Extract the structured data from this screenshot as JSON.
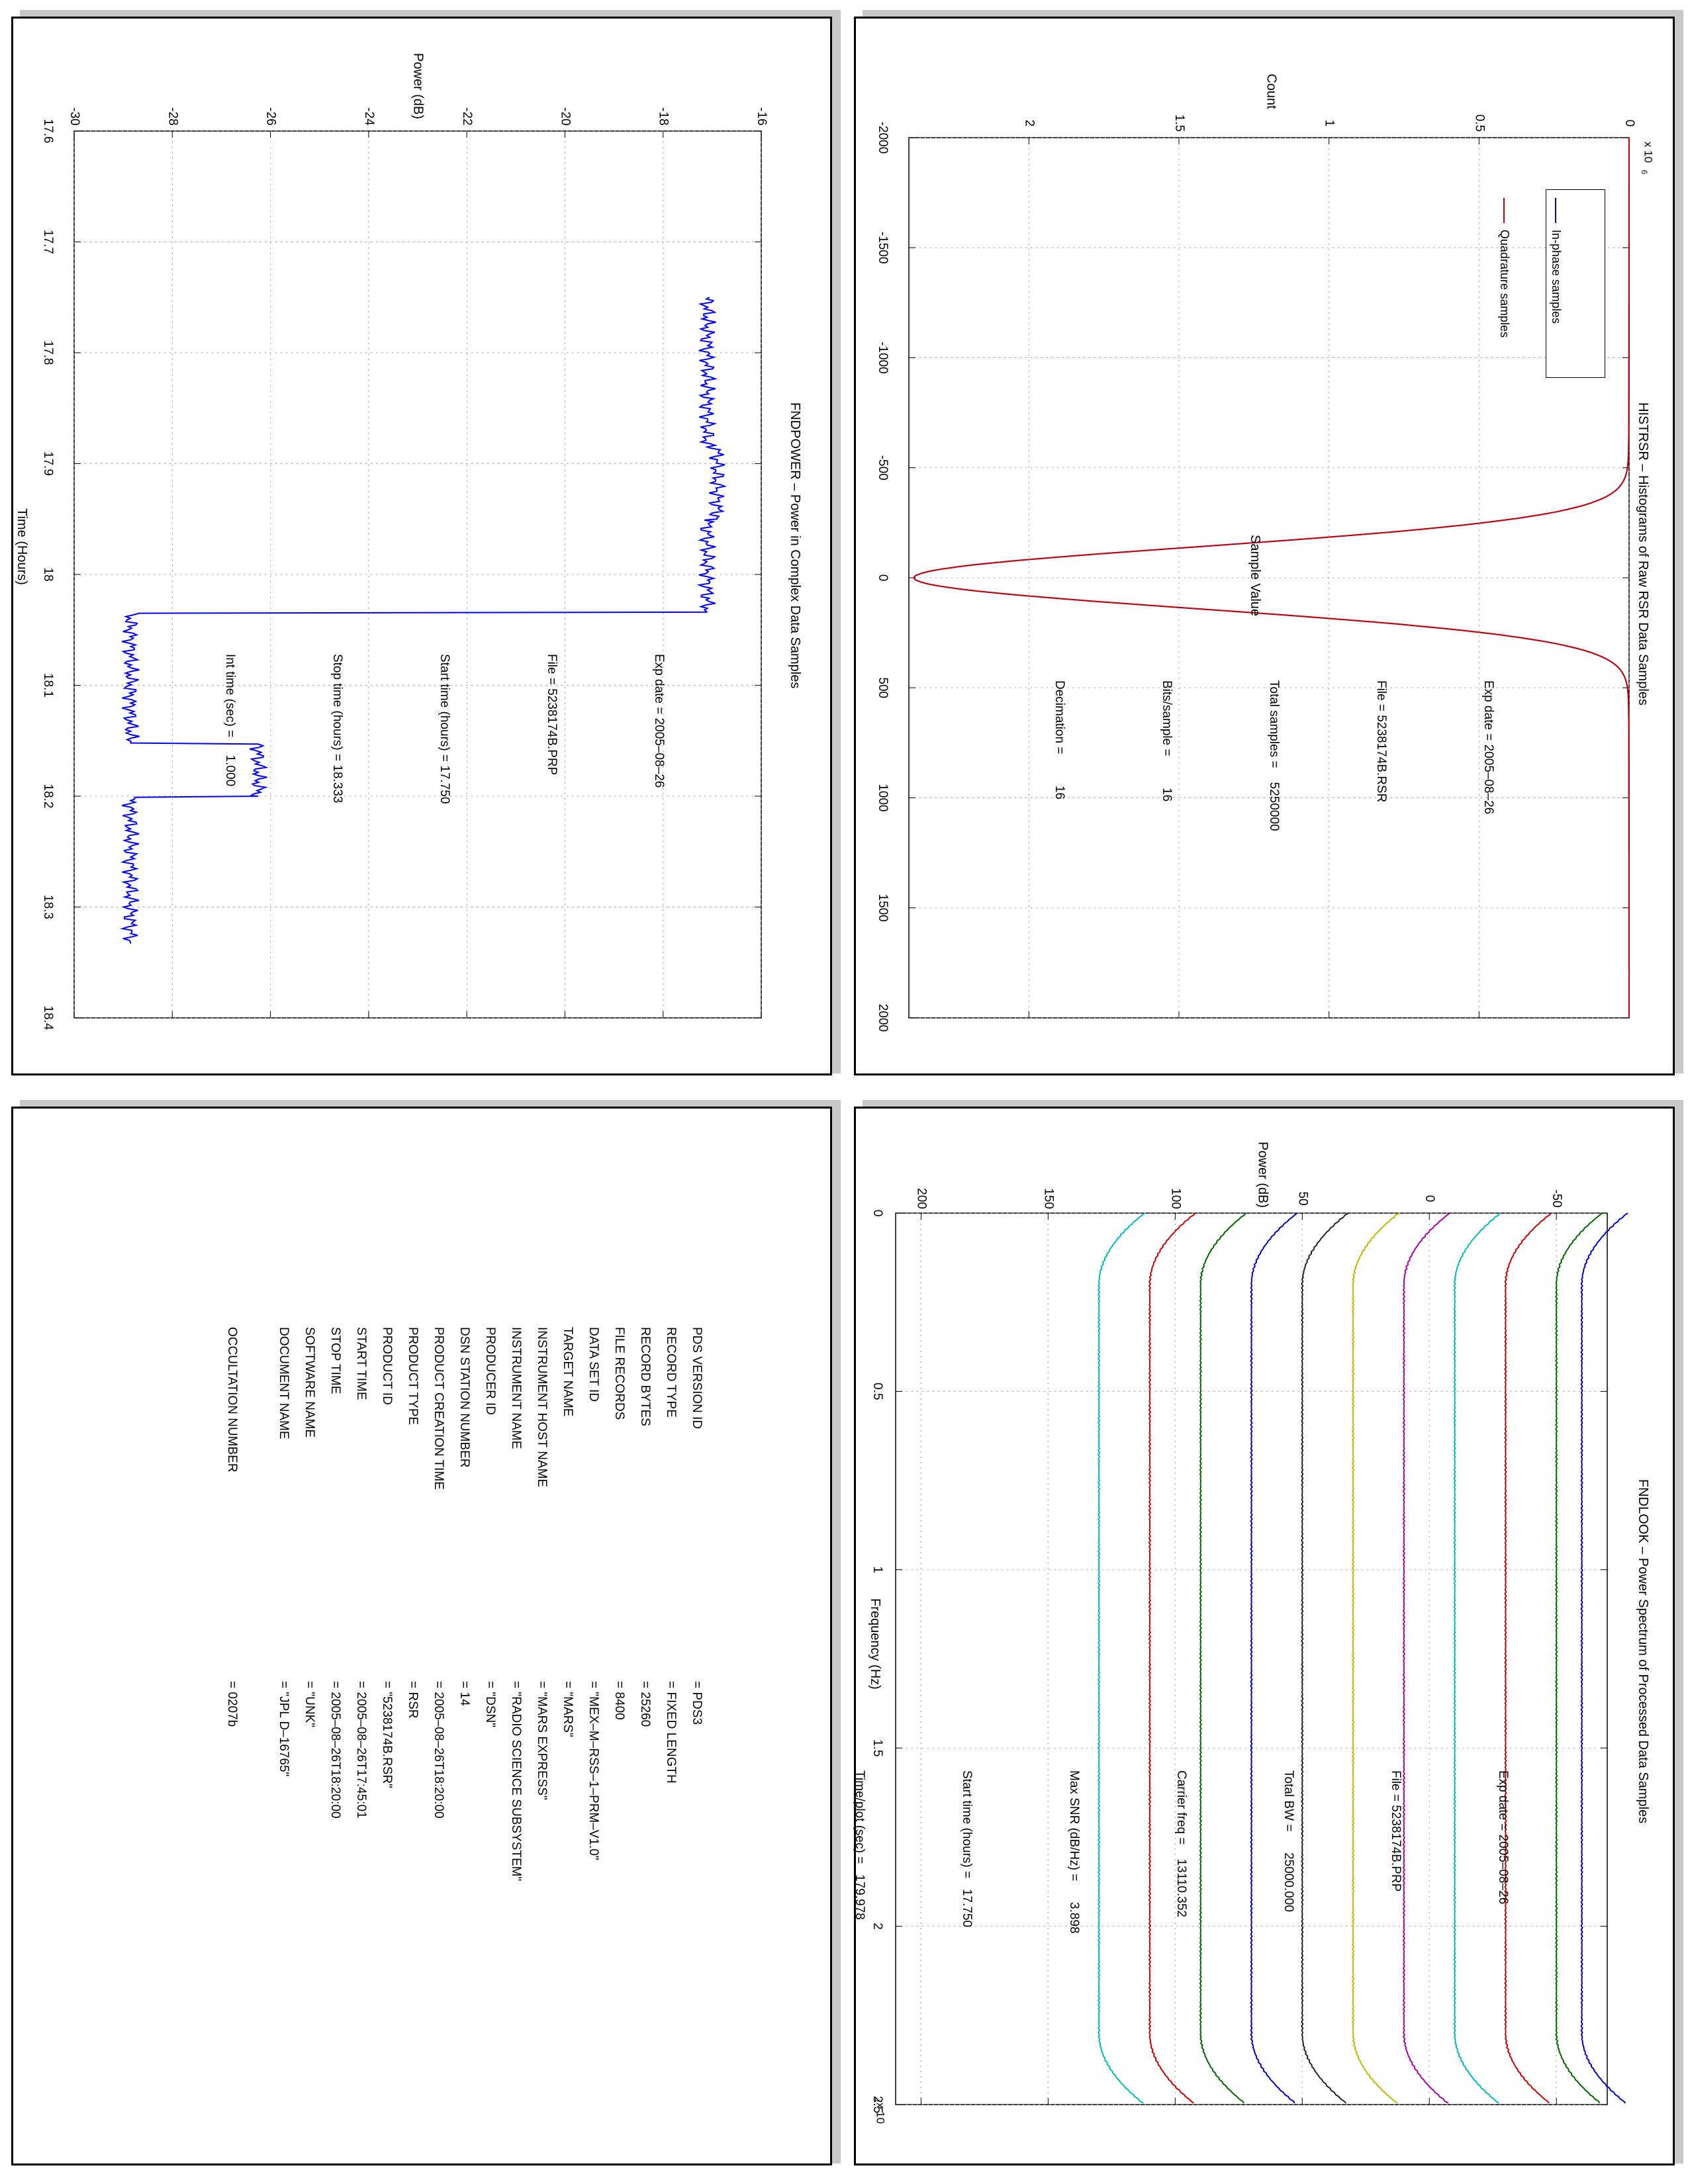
{
  "chart_data": [
    {
      "type": "line",
      "title": "HISTRSR – Histograms of Raw RSR Data Samples",
      "xlabel": "Sample Value",
      "ylabel": "Count",
      "y_exponent_label": "x 10",
      "y_exponent_power": "6",
      "xlim": [
        -2000,
        2000
      ],
      "ylim": [
        0,
        2.4
      ],
      "x_ticks": [
        "-2000",
        "-1500",
        "-1000",
        "-500",
        "0",
        "500",
        "1000",
        "1500",
        "2000"
      ],
      "y_ticks": [
        "0",
        "0.5",
        "1",
        "1.5",
        "2"
      ],
      "grid": true,
      "legend_position": "top-right",
      "series": [
        {
          "name": "In-phase samples",
          "color": "#0000ff",
          "curve": "gaussian",
          "peak": 2.38,
          "sigma": 140
        },
        {
          "name": "Quadrature samples",
          "color": "#cc0000",
          "curve": "gaussian",
          "peak": 2.38,
          "sigma": 140
        }
      ],
      "annotations": [
        {
          "label": "Exp date",
          "value": "= 2005–08–26"
        },
        {
          "label": "File",
          "value": "= 5238174B.RSR"
        },
        {
          "label": "Total samples",
          "value": "=    5250000"
        },
        {
          "label": "Bits/sample",
          "value": "=         16"
        },
        {
          "label": "Decimation",
          "value": "=         16"
        }
      ]
    },
    {
      "type": "line",
      "title": "FNDPOWER – Power in Complex Data Samples",
      "xlabel": "Time (Hours)",
      "ylabel": "Power (dB)",
      "xlim": [
        17.6,
        18.4
      ],
      "ylim": [
        -30,
        -16
      ],
      "x_ticks": [
        "17.6",
        "17.7",
        "17.8",
        "17.9",
        "18",
        "18.1",
        "18.2",
        "18.3",
        "18.4"
      ],
      "y_ticks": [
        "-30",
        "-28",
        "-26",
        "-24",
        "-22",
        "-20",
        "-18",
        "-16"
      ],
      "grid": true,
      "series": [
        {
          "color": "#0000ff",
          "x": [
            17.75,
            17.885,
            17.886,
            17.95,
            17.951,
            18.034,
            18.035,
            18.152,
            18.153,
            18.2,
            18.201,
            18.333
          ],
          "y": [
            -17.1,
            -17.1,
            -16.9,
            -16.9,
            -17.1,
            -17.1,
            -28.85,
            -28.85,
            -26.25,
            -26.25,
            -28.85,
            -28.85
          ]
        }
      ],
      "annotations": [
        {
          "label": "Exp date",
          "value": "= 2005–08–26"
        },
        {
          "label": "File",
          "value": "= 5238174B.PRP"
        },
        {
          "label": "Start time (hours)",
          "value": "= 17.750"
        },
        {
          "label": "Stop time (hours)",
          "value": "= 18.333"
        },
        {
          "label": "Int time (sec)",
          "value": "=     1.000"
        }
      ]
    },
    {
      "type": "line",
      "title": "FNDLOOK – Power Spectrum of Processed Data Samples",
      "xlabel": "Frequency (Hz)",
      "ylabel": "Power (dB)",
      "x_exponent_label": "x 10",
      "x_exponent_power": "4",
      "xlim": [
        0,
        25000
      ],
      "ylim": [
        -70,
        210
      ],
      "x_ticks": [
        "0",
        "0.5",
        "1",
        "1.5",
        "2",
        "2.5"
      ],
      "y_ticks": [
        "-50",
        "0",
        "50",
        "100",
        "150",
        "200"
      ],
      "grid": true,
      "series": [
        {
          "color": "#00bbbb",
          "level": 130
        },
        {
          "color": "#cc0000",
          "level": 110
        },
        {
          "color": "#006600",
          "level": 90
        },
        {
          "color": "#0000cc",
          "level": 70
        },
        {
          "color": "#222222",
          "level": 50
        },
        {
          "color": "#bbbb00",
          "level": 30
        },
        {
          "color": "#aa00aa",
          "level": 10
        },
        {
          "color": "#00bbbb",
          "level": -10
        },
        {
          "color": "#cc0000",
          "level": -30
        },
        {
          "color": "#006600",
          "level": -50
        },
        {
          "color": "#0000cc",
          "level": -60
        }
      ],
      "annotations": [
        {
          "label": "Exp date",
          "value": "= 2005–08–26"
        },
        {
          "label": "File",
          "value": "= 5238174B.PRP"
        },
        {
          "label": "Total BW",
          "value": "=      25000.000"
        },
        {
          "label": "Carrier freq",
          "value": "=    13110.352"
        },
        {
          "label": "Max SNR (dB/Hz)",
          "value": "=      3.898"
        },
        {
          "label": "Start time (hours)",
          "value": "=   17.750"
        },
        {
          "label": "Time/plot (sec)",
          "value": "=   179.978"
        }
      ]
    }
  ],
  "label_table": [
    {
      "key": "PDS VERSION ID",
      "value": "= PDS3"
    },
    {
      "key": "RECORD TYPE",
      "value": "= FIXED LENGTH"
    },
    {
      "key": "RECORD BYTES",
      "value": "= 25260"
    },
    {
      "key": "FILE RECORDS",
      "value": "= 8400"
    },
    {
      "key": "DATA SET ID",
      "value": "= \"MEX–M–RSS–1–PRM–V1.0\""
    },
    {
      "key": "TARGET NAME",
      "value": "= \"MARS\""
    },
    {
      "key": "INSTRUMENT HOST NAME",
      "value": "= \"MARS EXPRESS\""
    },
    {
      "key": "INSTRUMENT NAME",
      "value": "= \"RADIO SCIENCE SUBSYSTEM\""
    },
    {
      "key": "PRODUCER ID",
      "value": "= \"DSN\""
    },
    {
      "key": "DSN STATION NUMBER",
      "value": "= 14"
    },
    {
      "key": "PRODUCT CREATION TIME",
      "value": "= 2005–08–26T18:20:00"
    },
    {
      "key": "PRODUCT TYPE",
      "value": "= RSR"
    },
    {
      "key": "PRODUCT ID",
      "value": "= \"5238174B.RSR\""
    },
    {
      "key": "START TIME",
      "value": "= 2005–08–26T17:45:01"
    },
    {
      "key": "STOP TIME",
      "value": "= 2005–08–26T18:20:00"
    },
    {
      "key": "SOFTWARE NAME",
      "value": "= \"UNK\""
    },
    {
      "key": "DOCUMENT NAME",
      "value": "= \"JPL D–16765\""
    },
    {
      "key": "",
      "value": ""
    },
    {
      "key": "OCCULTATION NUMBER",
      "value": "= 0207b"
    }
  ]
}
